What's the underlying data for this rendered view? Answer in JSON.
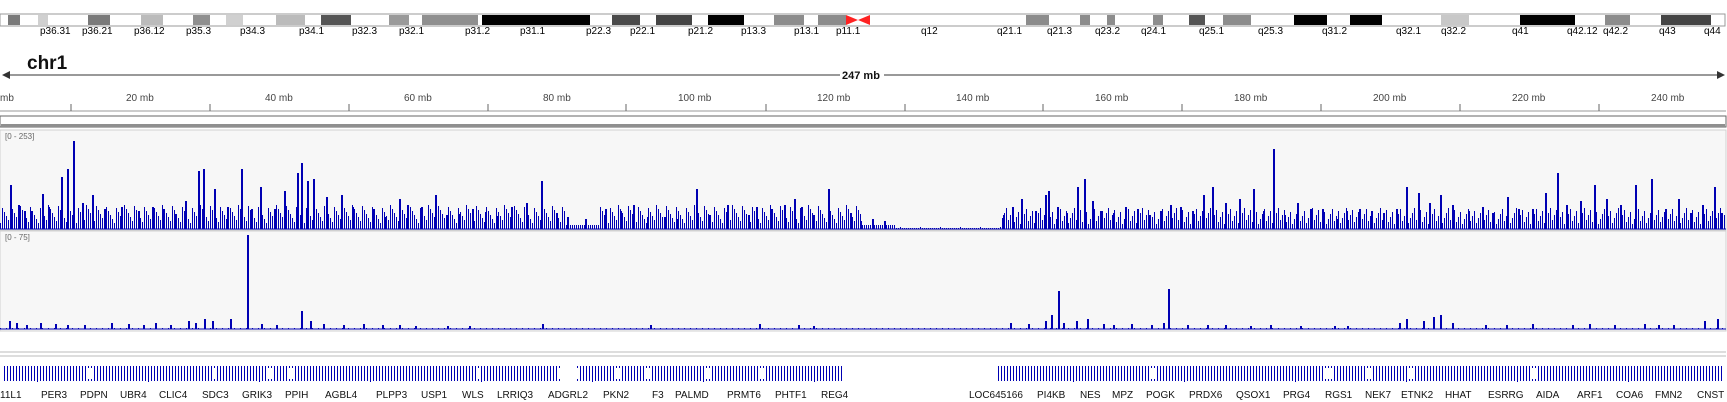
{
  "locus": {
    "chromosome": "chr1",
    "length_label": "247 mb"
  },
  "ideogram": {
    "band_labels": [
      "p36.31",
      "p36.21",
      "p36.12",
      "p35.3",
      "p34.3",
      "p34.1",
      "p32.3",
      "p32.1",
      "p31.2",
      "p31.1",
      "p22.3",
      "p22.1",
      "p21.2",
      "p13.3",
      "p13.1",
      "p11.1",
      "q12",
      "q21.1",
      "q21.3",
      "q23.2",
      "q24.1",
      "q25.1",
      "q25.3",
      "q31.2",
      "q32.1",
      "q32.2",
      "q41",
      "q42.12",
      "q42.2",
      "q43",
      "q44"
    ]
  },
  "ruler": {
    "ticks": [
      "mb",
      "20 mb",
      "40 mb",
      "60 mb",
      "80 mb",
      "100 mb",
      "120 mb",
      "140 mb",
      "160 mb",
      "180 mb",
      "200 mb",
      "220 mb",
      "240 mb"
    ]
  },
  "tracks": {
    "track1": {
      "range_label": "[0 - 253]",
      "color": "#0000b3"
    },
    "track2": {
      "range_label": "[0 - 75]",
      "color": "#0000b3"
    }
  },
  "genes": {
    "labels": [
      "11L1",
      "PER3",
      "PDPN",
      "UBR4",
      "CLIC4",
      "SDC3",
      "GRIK3",
      "PPIH",
      "AGBL4",
      "PLPP3",
      "USP1",
      "WLS",
      "LRRIQ3",
      "ADGRL2",
      "PKN2",
      "F3",
      "PALMD",
      "PRMT6",
      "PHTF1",
      "REG4",
      "LOC645166",
      "PI4KB",
      "NES",
      "MPZ",
      "POGK",
      "PRDX6",
      "QSOX1",
      "PRG4",
      "RGS1",
      "NEK7",
      "ETNK2",
      "HHAT",
      "ESRRG",
      "AIDA",
      "ARF1",
      "COA6",
      "FMN2",
      "CNST"
    ]
  }
}
